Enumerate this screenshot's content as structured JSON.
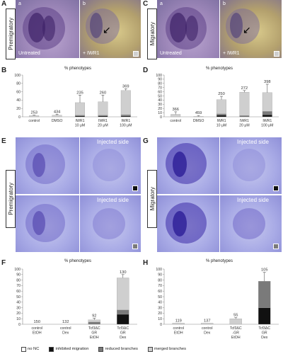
{
  "panels": {
    "A": {
      "letter": "A",
      "vertical_label": "Premigratory",
      "sub_a": "a",
      "sub_b": "b",
      "left_caption": "Untreated",
      "right_caption": "+ IWR1"
    },
    "C": {
      "letter": "C",
      "vertical_label": "Migratory",
      "sub_a": "a",
      "sub_b": "b",
      "left_caption": "Untreated",
      "right_caption": "+ IWR1"
    },
    "E": {
      "letter": "E",
      "vertical_label": "Premigratory",
      "right_top_caption": "Injected side",
      "right_bottom_caption": "Injected side"
    },
    "G": {
      "letter": "G",
      "vertical_label": "Migratory",
      "right_top_caption": "Injected side",
      "right_bottom_caption": "Injected side"
    },
    "B": {
      "letter": "B"
    },
    "D": {
      "letter": "D"
    },
    "F": {
      "letter": "F"
    },
    "H": {
      "letter": "H"
    }
  },
  "colors": {
    "no_nc": "#ffffff",
    "inhibited_migration": "#111111",
    "reduced_branches": "#7a7a7a",
    "merged_branches": "#cfcfcf"
  },
  "chart_data": [
    {
      "id": "B",
      "type": "bar",
      "title": "% phenotypes",
      "ylim": [
        0,
        100
      ],
      "yticks": [
        0,
        20,
        40,
        60,
        80,
        100
      ],
      "categories": [
        [
          "control"
        ],
        [
          "DMSO"
        ],
        [
          "IWR1",
          "10 μM"
        ],
        [
          "IWR1",
          "20 μM"
        ],
        [
          "IWR1",
          "100 μM"
        ]
      ],
      "n": [
        "253",
        "434",
        "235",
        "260",
        "369"
      ],
      "stacks": [
        {
          "inhibited_migration": 0,
          "reduced_branches": 0,
          "merged_branches": 3,
          "err": 1
        },
        {
          "inhibited_migration": 0,
          "reduced_branches": 0,
          "merged_branches": 4,
          "err": 2
        },
        {
          "inhibited_migration": 2,
          "reduced_branches": 2,
          "merged_branches": 30,
          "err": 18
        },
        {
          "inhibited_migration": 2,
          "reduced_branches": 2,
          "merged_branches": 32,
          "err": 16
        },
        {
          "inhibited_migration": 2,
          "reduced_branches": 3,
          "merged_branches": 58,
          "err": 4
        }
      ]
    },
    {
      "id": "D",
      "type": "bar",
      "title": "% phenotypes",
      "ylim": [
        0,
        100
      ],
      "yticks": [
        0,
        10,
        20,
        30,
        40,
        50,
        60,
        70,
        80,
        90,
        100
      ],
      "categories": [
        [
          "control"
        ],
        [
          "DMSO"
        ],
        [
          "IWR1",
          "10 μM"
        ],
        [
          "IWR1",
          "20 μM"
        ],
        [
          "IWR1",
          "100 μM"
        ]
      ],
      "n": [
        "366",
        "459",
        "250",
        "272",
        "398"
      ],
      "stacks": [
        {
          "inhibited_migration": 0,
          "reduced_branches": 0,
          "merged_branches": 6,
          "err": 6
        },
        {
          "inhibited_migration": 0,
          "reduced_branches": 0,
          "merged_branches": 1,
          "err": 2
        },
        {
          "inhibited_migration": 4,
          "reduced_branches": 3,
          "merged_branches": 34,
          "err": 8
        },
        {
          "inhibited_migration": 1,
          "reduced_branches": 2,
          "merged_branches": 56,
          "err": 4
        },
        {
          "inhibited_migration": 5,
          "reduced_branches": 8,
          "merged_branches": 45,
          "err": 20
        }
      ]
    },
    {
      "id": "F",
      "type": "bar",
      "title": "% phenotypes",
      "ylim": [
        0,
        100
      ],
      "yticks": [
        0,
        10,
        20,
        30,
        40,
        50,
        60,
        70,
        80,
        90,
        100
      ],
      "categories": [
        [
          "control",
          "EtOH"
        ],
        [
          "control",
          "Dex"
        ],
        [
          "Tcf3ΔC",
          "GR",
          "EtOH"
        ],
        [
          "Tcf3ΔC",
          "GR",
          "Dex"
        ]
      ],
      "n": [
        "150",
        "132",
        "92",
        "130"
      ],
      "stacks": [
        {
          "inhibited_migration": 0,
          "reduced_branches": 0,
          "merged_branches": 0,
          "err": 0
        },
        {
          "inhibited_migration": 0,
          "reduced_branches": 0,
          "merged_branches": 0,
          "err": 0
        },
        {
          "inhibited_migration": 0,
          "reduced_branches": 4,
          "merged_branches": 4,
          "err": 3
        },
        {
          "inhibited_migration": 18,
          "reduced_branches": 8,
          "merged_branches": 58,
          "err": 6
        }
      ]
    },
    {
      "id": "H",
      "type": "bar",
      "title": "% phenotypes",
      "ylim": [
        0,
        100
      ],
      "yticks": [
        0,
        10,
        20,
        30,
        40,
        50,
        60,
        70,
        80,
        90,
        100
      ],
      "categories": [
        [
          "control",
          "EtOH"
        ],
        [
          "control",
          "Dex"
        ],
        [
          "Tcf3ΔC",
          "-GR",
          "EtOH"
        ],
        [
          "Tcf3ΔC",
          "GR",
          "Dex"
        ]
      ],
      "n": [
        "119",
        "137",
        "55",
        "105"
      ],
      "stacks": [
        {
          "inhibited_migration": 0,
          "reduced_branches": 0,
          "merged_branches": 2,
          "err": 0
        },
        {
          "inhibited_migration": 0,
          "reduced_branches": 0,
          "merged_branches": 2,
          "err": 0
        },
        {
          "inhibited_migration": 0,
          "reduced_branches": 0,
          "merged_branches": 10,
          "err": 2
        },
        {
          "inhibited_migration": 30,
          "reduced_branches": 48,
          "merged_branches": 0,
          "err": 16
        }
      ]
    }
  ],
  "legend": [
    {
      "key": "no_nc",
      "label": "no NC"
    },
    {
      "key": "inhibited_migration",
      "label": "inhibited migration"
    },
    {
      "key": "reduced_branches",
      "label": "reduced branches"
    },
    {
      "key": "merged_branches",
      "label": "merged branches"
    }
  ]
}
